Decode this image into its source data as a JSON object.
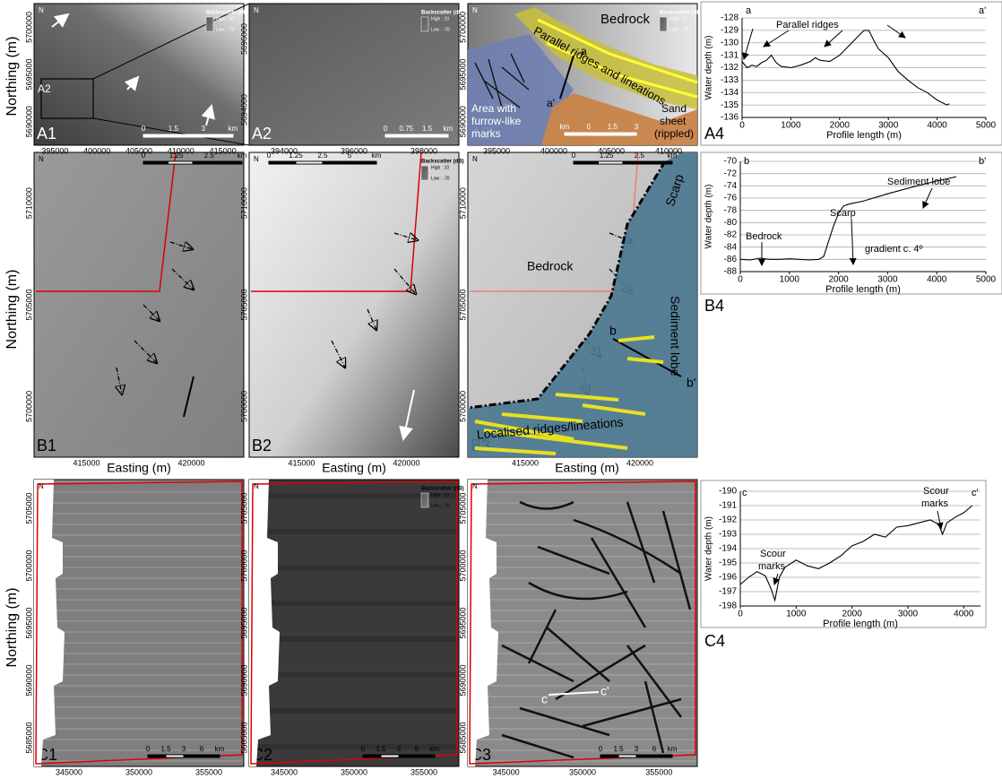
{
  "figure": {
    "row_axis_label": "Northing (m)",
    "col_axis_label": "Easting (m)",
    "north_label": "N",
    "backscatter_legend": {
      "title": "Backscatter (dB)",
      "high": "High : 10",
      "low": "Low : -70"
    },
    "panels": [
      {
        "label": "A1",
        "legend": true,
        "yticks": [
          5700000,
          5695000,
          5690000
        ],
        "xticks": [
          395000,
          400000,
          405000,
          410000,
          415000
        ],
        "scale": [
          "0",
          "1.5",
          "3",
          "km"
        ],
        "annotations": [
          "A2"
        ]
      },
      {
        "label": "A2",
        "legend": true,
        "yticks": [
          5696000,
          5694000
        ],
        "xticks": [
          394000,
          396000,
          398000
        ],
        "scale": [
          "0",
          "0.75",
          "1.5",
          "km"
        ],
        "annotations": []
      },
      {
        "label": "A3",
        "legend": true,
        "yticks": [
          5700000,
          5695000,
          5690000
        ],
        "xticks": [
          395000,
          400000,
          405000,
          410000
        ],
        "scale": [
          "km",
          "0",
          "1.5",
          "3"
        ],
        "annotations": [
          "Bedrock",
          "a",
          "a'",
          "Parallel ridges and lineations",
          "Area with",
          "furrow-like",
          "marks",
          "Sand",
          "sheet",
          "(rippled)"
        ]
      },
      {
        "label": "B1",
        "legend": false,
        "yticks": [
          5710000,
          5705000,
          5700000
        ],
        "xticks": [
          415000,
          420000
        ],
        "scale": [
          "0",
          "1.25",
          "2.5",
          "km"
        ],
        "annotations": []
      },
      {
        "label": "B2",
        "legend": true,
        "yticks": [
          5710000,
          5705000,
          5700000
        ],
        "xticks": [
          415000,
          420000
        ],
        "scale": [
          "0",
          "1.25",
          "2.5",
          "5",
          "km"
        ],
        "annotations": []
      },
      {
        "label": "B3",
        "legend": false,
        "yticks": [
          5710000,
          5705000,
          5700000
        ],
        "xticks": [
          415000,
          420000
        ],
        "scale": [
          "0",
          "1.25",
          "2.5",
          "km"
        ],
        "annotations": [
          "Scarp",
          "Bedrock",
          "b",
          "b'",
          "Sediment lobe",
          "Localised ridges/lineations"
        ]
      },
      {
        "label": "C1",
        "legend": false,
        "yticks": [
          5705000,
          5700000,
          5695000,
          5690000,
          5685000
        ],
        "xticks": [
          345000,
          350000,
          355000
        ],
        "scale": [
          "0",
          "1.5",
          "3",
          "6",
          "km"
        ],
        "annotations": []
      },
      {
        "label": "C2",
        "legend": true,
        "yticks": [
          5705000,
          5700000,
          5695000,
          5690000,
          5685000
        ],
        "xticks": [
          345000,
          350000,
          355000
        ],
        "scale": [
          "0",
          "1.5",
          "3",
          "6",
          "km"
        ],
        "annotations": []
      },
      {
        "label": "C3",
        "legend": false,
        "yticks": [
          5705000,
          5700000,
          5695000,
          5690000,
          5685000
        ],
        "xticks": [
          345000,
          350000,
          355000
        ],
        "scale": [
          "0",
          "1.5",
          "3",
          "6",
          "km"
        ],
        "annotations": [
          "c",
          "c'"
        ]
      }
    ]
  },
  "chart_data": [
    {
      "type": "line",
      "panel_label": "A4",
      "xlabel": "Profile length (m)",
      "ylabel": "Water depth (m)",
      "color": "#000000",
      "grid": true,
      "x": [
        0,
        100,
        200,
        300,
        400,
        500,
        600,
        700,
        800,
        1000,
        1200,
        1400,
        1500,
        1600,
        1800,
        2000,
        2200,
        2400,
        2500,
        2600,
        2700,
        2800,
        3000,
        3200,
        3400,
        3600,
        3800,
        4000,
        4200,
        4250
      ],
      "values": [
        -131.5,
        -132,
        -131.8,
        -131.9,
        -131.6,
        -131.4,
        -131,
        -131.6,
        -131.9,
        -132,
        -131.8,
        -131.5,
        -131.2,
        -131.4,
        -131.5,
        -131,
        -130.2,
        -129.4,
        -129,
        -129,
        -129.8,
        -130.5,
        -131.2,
        -132.3,
        -133,
        -133.6,
        -134,
        -134.6,
        -135,
        -134.9
      ],
      "xlim": [
        0,
        5000
      ],
      "xticks": [
        0,
        1000,
        2000,
        3000,
        4000,
        5000
      ],
      "ylim": [
        -136,
        -128
      ],
      "yticks": [
        -136,
        -135,
        -134,
        -133,
        -132,
        -131,
        -130,
        -129,
        -128
      ],
      "annotations": [
        "a",
        "a'",
        "Parallel ridges"
      ]
    },
    {
      "type": "line",
      "panel_label": "B4",
      "xlabel": "Profile length (m)",
      "ylabel": "Water depth (m)",
      "color": "#000000",
      "grid": true,
      "x": [
        0,
        200,
        400,
        600,
        800,
        1000,
        1200,
        1400,
        1600,
        1700,
        1800,
        1900,
        2000,
        2100,
        2200,
        2500,
        3000,
        3500,
        4000,
        4400
      ],
      "values": [
        -86,
        -86.1,
        -85.8,
        -86,
        -86,
        -85.9,
        -86,
        -86.1,
        -86,
        -85.5,
        -83,
        -80.5,
        -78.5,
        -77.3,
        -77,
        -76.5,
        -75.3,
        -74.2,
        -73.2,
        -72.5
      ],
      "xlim": [
        0,
        5000
      ],
      "xticks": [
        0,
        1000,
        2000,
        3000,
        4000,
        5000
      ],
      "ylim": [
        -88,
        -70
      ],
      "yticks": [
        -88,
        -86,
        -84,
        -82,
        -80,
        -78,
        -76,
        -74,
        -72,
        -70
      ],
      "annotations": [
        "b",
        "b'",
        "Bedrock",
        "Scarp",
        "Sediment lobe",
        "gradient c. 4º"
      ]
    },
    {
      "type": "line",
      "panel_label": "C4",
      "xlabel": "Profile length (m)",
      "ylabel": "Water depth (m)",
      "color": "#000000",
      "grid": true,
      "x": [
        0,
        150,
        300,
        450,
        550,
        620,
        700,
        800,
        1000,
        1200,
        1400,
        1600,
        1800,
        2000,
        2200,
        2400,
        2600,
        2800,
        3000,
        3200,
        3400,
        3550,
        3620,
        3700,
        3850,
        4000,
        4150
      ],
      "values": [
        -196.5,
        -196,
        -195.6,
        -195.9,
        -196.8,
        -197.6,
        -196,
        -195.3,
        -194.8,
        -195.2,
        -195.4,
        -195,
        -194.5,
        -193.8,
        -193.5,
        -193,
        -193.2,
        -192.5,
        -192.4,
        -192.2,
        -192,
        -192.3,
        -193,
        -192.2,
        -191.8,
        -191.5,
        -191
      ],
      "xlim": [
        0,
        4300
      ],
      "xticks": [
        0,
        1000,
        2000,
        3000,
        4000
      ],
      "ylim": [
        -198,
        -190
      ],
      "yticks": [
        -198,
        -197,
        -196,
        -195,
        -194,
        -193,
        -192,
        -191,
        -190
      ],
      "annotations": [
        "c",
        "c'",
        "Scour",
        "marks",
        "Scour",
        "marks"
      ]
    }
  ]
}
